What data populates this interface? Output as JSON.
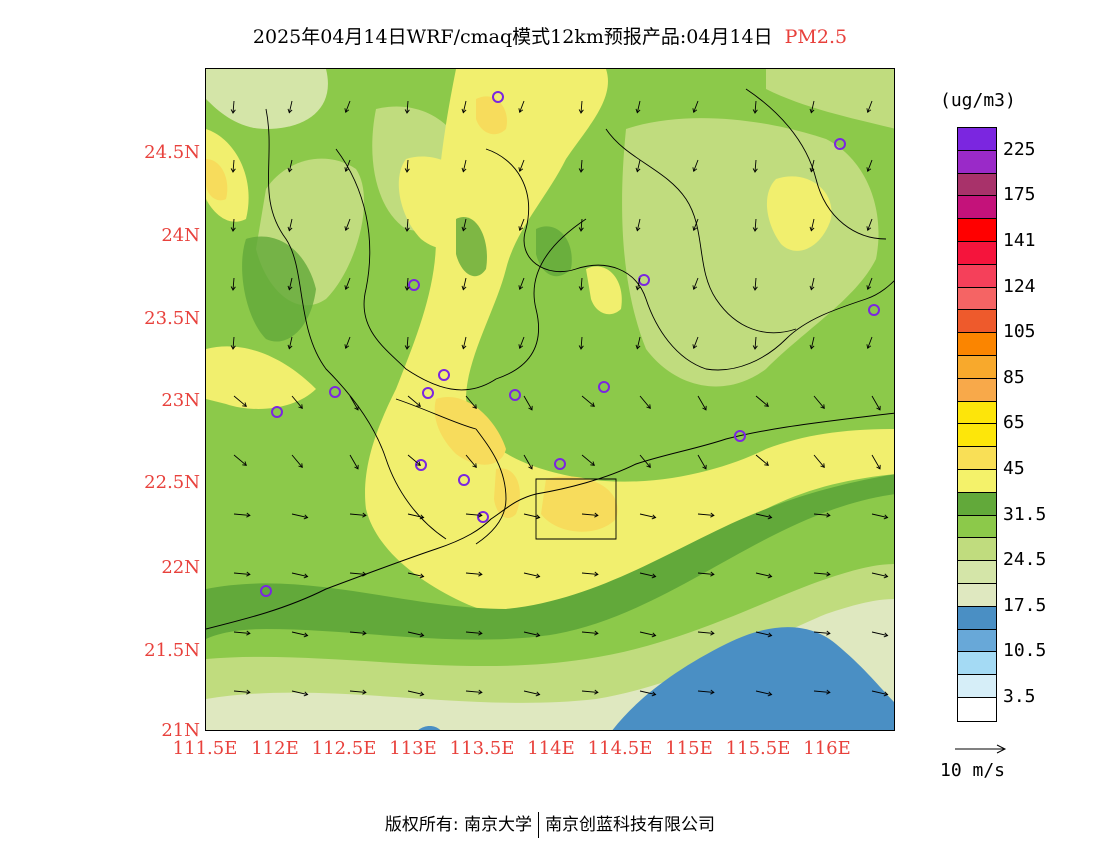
{
  "title": {
    "main": "2025年04月14日WRF/cmaq模式12km预报产品:04月14日",
    "variable": "PM2.5"
  },
  "map": {
    "lat_ticks": [
      "24.5N",
      "24N",
      "23.5N",
      "23N",
      "22.5N",
      "22N",
      "21.5N",
      "21N"
    ],
    "lon_ticks": [
      "111.5E",
      "112E",
      "112.5E",
      "113E",
      "113.5E",
      "114E",
      "114.5E",
      "115E",
      "115.5E",
      "116E"
    ],
    "land_colors": {
      "c_31_45": "#8cc94a",
      "c_24_31": "#c0dc7e",
      "c_17_24": "#d4e5a8",
      "c_45_65": "#f1ef6e",
      "c_65": "#f7dc5c",
      "c_dark": "#62a93a",
      "c_sea_low": "#dfe8c0",
      "c_sea_blue": "#4a8fc4"
    }
  },
  "colorbar": {
    "unit": "(ug/m3)",
    "colors": [
      "#7b26e0",
      "#9a2ac8",
      "#a8326a",
      "#c4127a",
      "#ff0000",
      "#f5143c",
      "#f5405a",
      "#f56464",
      "#ee5a2c",
      "#fb8500",
      "#f8a92c",
      "#f8a94a",
      "#fde50a",
      "#fde60a",
      "#f9df56",
      "#f4f26a",
      "#62a93a",
      "#8cc94a",
      "#c0dc7e",
      "#d4e5a8",
      "#dfe8c0",
      "#4a8fc4",
      "#68a8d8",
      "#a4daf4",
      "#d6eef8",
      "#ffffff"
    ],
    "labels": [
      "225",
      "175",
      "141",
      "124",
      "105",
      "85",
      "65",
      "45",
      "31.5",
      "24.5",
      "17.5",
      "10.5",
      "3.5"
    ]
  },
  "wind_ref": {
    "label": "10 m/s"
  },
  "footer": {
    "left": "版权所有: 南京大学",
    "right": "南京创蓝科技有限公司"
  }
}
